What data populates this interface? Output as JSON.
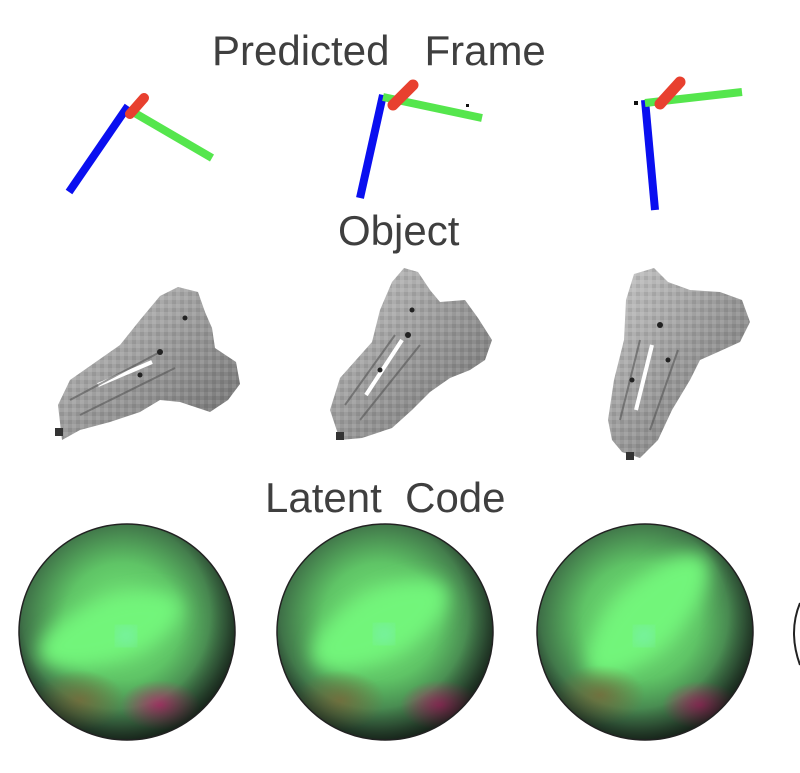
{
  "headings": {
    "predicted_frame": "Predicted   Frame",
    "object": "Object",
    "latent_code": "Latent  Code"
  },
  "colors": {
    "axis_x": "#e8402f",
    "axis_y": "#55e64d",
    "axis_z": "#0a0ff0",
    "heading_text": "#3f3f3f",
    "object_gray": "#9a9a9a",
    "sphere_green": "#5ef06a"
  },
  "frames": [
    {
      "name": "frame-1"
    },
    {
      "name": "frame-2"
    },
    {
      "name": "frame-3"
    }
  ],
  "objects": [
    {
      "name": "object-1"
    },
    {
      "name": "object-2"
    },
    {
      "name": "object-3"
    }
  ],
  "spheres": [
    {
      "name": "latent-sphere-1"
    },
    {
      "name": "latent-sphere-2"
    },
    {
      "name": "latent-sphere-3"
    }
  ]
}
